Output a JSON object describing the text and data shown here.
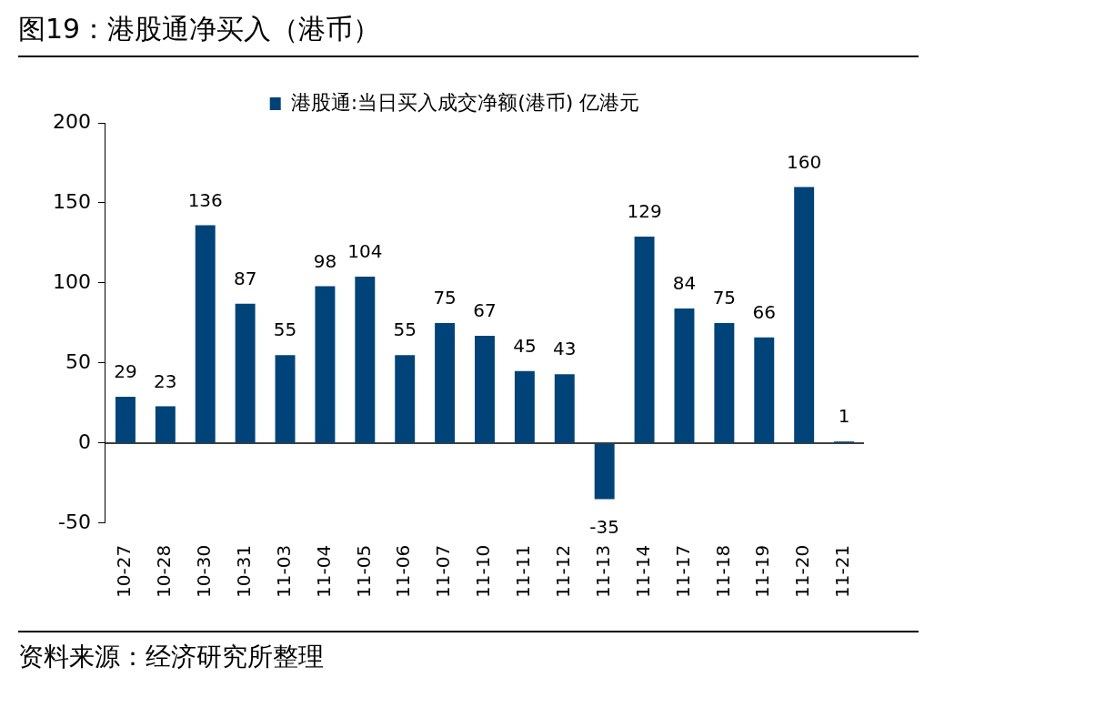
{
  "chart_data": {
    "type": "bar",
    "title": "图19：港股通净买入（港币）",
    "categories": [
      "10-27",
      "10-28",
      "10-30",
      "10-31",
      "11-03",
      "11-04",
      "11-05",
      "11-06",
      "11-07",
      "11-10",
      "11-11",
      "11-12",
      "11-13",
      "11-14",
      "11-17",
      "11-18",
      "11-19",
      "11-20",
      "11-21"
    ],
    "series": [
      {
        "name": "港股通:当日买入成交净额(港币) 亿港元",
        "color": "#004378",
        "values": [
          29,
          23,
          136,
          87,
          55,
          98,
          104,
          55,
          75,
          67,
          45,
          43,
          -35,
          129,
          84,
          75,
          66,
          160,
          1
        ]
      }
    ],
    "ref_lines": [
      {
        "axis": "y",
        "value": 0,
        "color": "#000000"
      }
    ],
    "ylim": [
      -50,
      200
    ],
    "yticks": [
      -50,
      0,
      50,
      100,
      150,
      200
    ],
    "grid": false,
    "legend": "top",
    "data_labels": true,
    "annotations": [
      "资料来源：经济研究所整理"
    ]
  }
}
